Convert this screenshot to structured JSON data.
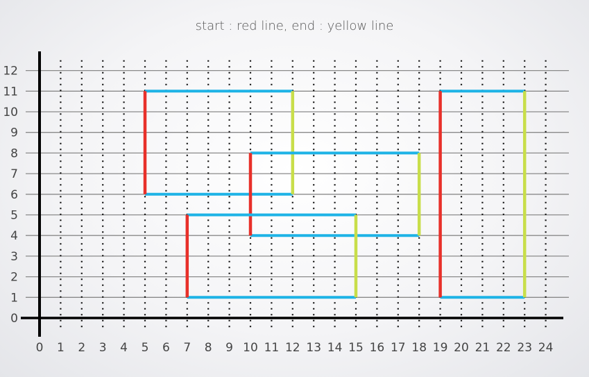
{
  "title": "start : red line, end : yellow line",
  "x_ticks": [
    "0",
    "1",
    "2",
    "3",
    "4",
    "5",
    "6",
    "7",
    "8",
    "9",
    "10",
    "11",
    "12",
    "13",
    "14",
    "15",
    "16",
    "17",
    "18",
    "19",
    "20",
    "21",
    "22",
    "23",
    "24"
  ],
  "y_ticks": [
    "0",
    "1",
    "2",
    "3",
    "4",
    "5",
    "6",
    "7",
    "8",
    "9",
    "10",
    "11",
    "12"
  ],
  "colors": {
    "start": "#e8302a",
    "end": "#c8de4a",
    "edge": "#1eb3e6",
    "grid": "#8a8a8a",
    "axis": "#000000"
  },
  "rectangles": [
    {
      "x_start": 5,
      "x_end": 12,
      "y_bottom": 6,
      "y_top": 11
    },
    {
      "x_start": 10,
      "x_end": 18,
      "y_bottom": 4,
      "y_top": 8
    },
    {
      "x_start": 7,
      "x_end": 15,
      "y_bottom": 1,
      "y_top": 5
    },
    {
      "x_start": 19,
      "x_end": 23,
      "y_bottom": 1,
      "y_top": 11
    }
  ]
}
